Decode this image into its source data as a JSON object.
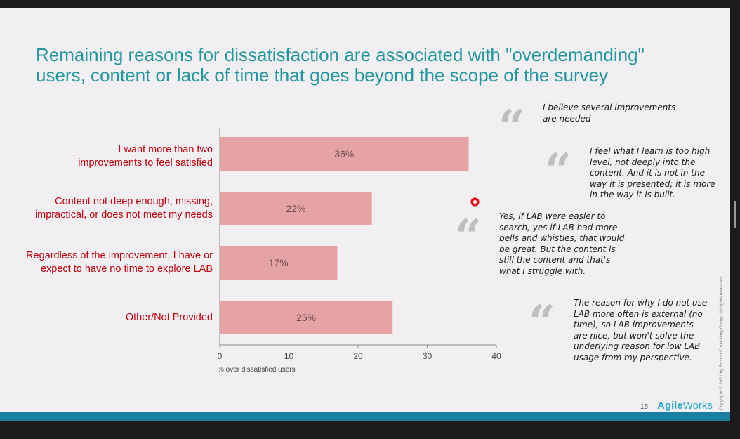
{
  "slide": {
    "title_lines": [
      "Remaining reasons for dissatisfaction are associated with \"overdemanding\"",
      "users, content or lack of time that goes beyond the scope of the survey"
    ],
    "page_number": "15",
    "logo_bold": "Agile",
    "logo_regular": "Works",
    "copyright": "Copyright © 2021 by Boston Consulting Group. All rights reserved.",
    "colors": {
      "title": "#23979e",
      "category": "#c0000b",
      "bar": "#e6a3a5",
      "bottom_bar": "#1a7fa0"
    }
  },
  "categories": [
    {
      "lines": [
        "I want more than two",
        "improvements to feel satisfied"
      ]
    },
    {
      "lines": [
        "Content not deep enough, missing,",
        "impractical, or does not meet my needs"
      ]
    },
    {
      "lines": [
        "Regardless of the improvement, I have or",
        "expect to have no time to explore LAB"
      ]
    },
    {
      "lines": [
        "Other/Not Provided"
      ]
    }
  ],
  "chart_data": {
    "type": "bar",
    "orientation": "horizontal",
    "categories": [
      "I want more than two improvements to feel satisfied",
      "Content not deep enough, missing, impractical, or does not meet my needs",
      "Regardless of the improvement, I have or expect to have no time to explore LAB",
      "Other/Not Provided"
    ],
    "values": [
      36,
      22,
      17,
      25
    ],
    "data_labels": [
      "36%",
      "22%",
      "17%",
      "25%"
    ],
    "xlabel": "% over dissatisfied users",
    "xlim": [
      0,
      40
    ],
    "ticks": [
      "0",
      "10",
      "20",
      "30",
      "40"
    ],
    "grid": false
  },
  "quotes": [
    {
      "mark": "“",
      "lines": [
        "I believe several improvements",
        "are needed"
      ]
    },
    {
      "mark": "“",
      "lines": [
        "I feel what I learn is too high",
        "level, not deeply into the",
        "content. And it is not in the",
        "way it is presented; it is more",
        "in the way it is built."
      ]
    },
    {
      "mark": "“",
      "lines": [
        "Yes, if LAB were easier to",
        "search, yes if LAB had more",
        "bells and whistles, that would",
        "be great.  But the content is",
        "still the content and that's",
        "what I struggle with."
      ]
    },
    {
      "mark": "“",
      "lines": [
        "The reason for why I do not use",
        "LAB more often is external (no",
        "time), so LAB improvements",
        "are nice, but won't solve the",
        "underlying reason for low LAB",
        "usage from my perspective."
      ]
    }
  ]
}
